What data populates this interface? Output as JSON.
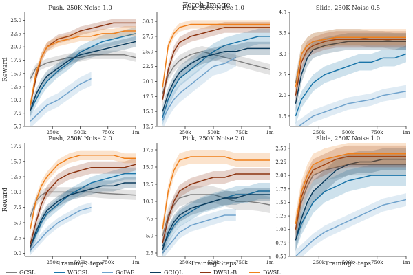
{
  "chart_data": {
    "type": "line",
    "title": "Fetch Image",
    "ylabel": "Reward",
    "xlabel": "Training Steps",
    "series_names": [
      "GCSL",
      "WGCSL",
      "GoFAR",
      "GCIQL",
      "DWSL-B",
      "DWSL"
    ],
    "series_colors": [
      "#7f7f7f",
      "#1a75a9",
      "#6fa2cc",
      "#0b3b5c",
      "#8b3310",
      "#ef7f1a"
    ],
    "x": [
      50000,
      100000,
      150000,
      200000,
      300000,
      400000,
      500000,
      600000,
      700000,
      800000,
      900000,
      1000000
    ],
    "panels": [
      {
        "title": "Push, 250K Noise 1.0",
        "xlim": [
          0,
          1000000
        ],
        "xticks": [
          250000,
          500000,
          750000,
          1000000
        ],
        "xtick_labels": [
          "250k",
          "500k",
          "750k",
          "1m"
        ],
        "ylim": [
          5,
          26.5
        ],
        "yticks": [
          5.0,
          7.5,
          10.0,
          12.5,
          15.0,
          17.5,
          20.0,
          22.5,
          25.0
        ],
        "ytick_labels": [
          "5.0",
          "7.5",
          "10.0",
          "12.5",
          "15.0",
          "17.5",
          "20.0",
          "22.5",
          "25.0"
        ],
        "series": [
          {
            "name": "GCSL",
            "values": [
              14,
              16,
              16.5,
              17,
              17.5,
              18,
              18,
              18.5,
              18.5,
              18.5,
              18.5,
              18
            ],
            "band": 0.8
          },
          {
            "name": "WGCSL",
            "values": [
              8,
              10,
              12,
              13.5,
              15.5,
              17,
              19,
              20,
              21,
              21.5,
              22,
              22.5
            ],
            "band": 1.2
          },
          {
            "name": "GoFAR",
            "values": [
              6,
              7,
              8,
              9,
              10,
              11.5,
              13,
              14,
              null,
              null,
              null,
              null
            ],
            "band": 1.3
          },
          {
            "name": "GCIQL",
            "values": [
              8,
              11,
              13,
              14.5,
              16,
              17.5,
              18.5,
              19,
              19.5,
              20,
              20.5,
              21
            ],
            "band": 1.0
          },
          {
            "name": "DWSL-B",
            "values": [
              9,
              14,
              18,
              20,
              21.5,
              22,
              23,
              23.5,
              24,
              24.5,
              24.5,
              24.5
            ],
            "band": 0.8
          },
          {
            "name": "DWSL",
            "values": [
              9,
              15,
              18,
              20,
              21,
              21.5,
              22,
              22,
              22.5,
              22.5,
              23,
              23
            ],
            "band": 0.9
          }
        ]
      },
      {
        "title": "Pick, 250K Noise 1.0",
        "xlim": [
          0,
          1000000
        ],
        "xticks": [
          250000,
          500000,
          750000,
          1000000
        ],
        "xtick_labels": [
          "250k",
          "500k",
          "750k",
          "1m"
        ],
        "ylim": [
          12.5,
          31.5
        ],
        "yticks": [
          12.5,
          15.0,
          17.5,
          20.0,
          22.5,
          25.0,
          27.5,
          30.0
        ],
        "ytick_labels": [
          "12.5",
          "15.0",
          "17.5",
          "20.0",
          "22.5",
          "25.0",
          "27.5",
          "30.0"
        ],
        "series": [
          {
            "name": "GCSL",
            "values": [
              18,
              21,
              22.5,
              23.5,
              24.5,
              25,
              24.5,
              24,
              23.5,
              23,
              22.5,
              22
            ],
            "band": 0.9
          },
          {
            "name": "WGCSL",
            "values": [
              14,
              17,
              19,
              20.5,
              22,
              23.5,
              25,
              26,
              26.5,
              27,
              27.5,
              27.5
            ],
            "band": 1.3
          },
          {
            "name": "GoFAR",
            "values": [
              13.5,
              15.5,
              17,
              18,
              19.5,
              21,
              22.5,
              23,
              24,
              null,
              null,
              null
            ],
            "band": 1.5
          },
          {
            "name": "GCIQL",
            "values": [
              15,
              18,
              20,
              21.5,
              23,
              24,
              24.5,
              25,
              25,
              25.5,
              25.5,
              25.5
            ],
            "band": 1.1
          },
          {
            "name": "DWSL-B",
            "values": [
              17,
              22,
              25,
              26.5,
              27.5,
              28,
              28.5,
              29,
              29,
              29,
              29,
              29
            ],
            "band": 0.9
          },
          {
            "name": "DWSL",
            "values": [
              19,
              26,
              28,
              29,
              29.5,
              29.5,
              29.5,
              29.5,
              29.5,
              29.5,
              29.5,
              29.5
            ],
            "band": 0.7
          }
        ]
      },
      {
        "title": "Slide, 250K Noise 0.5",
        "xlim": [
          0,
          1000000
        ],
        "xticks": [
          250000,
          500000,
          750000,
          1000000
        ],
        "xtick_labels": [
          "250k",
          "500k",
          "750k",
          "1m"
        ],
        "ylim": [
          1.25,
          4.0
        ],
        "yticks": [
          1.5,
          2.0,
          2.5,
          3.0,
          3.5,
          4.0
        ],
        "ytick_labels": [
          "1.5",
          "2.0",
          "2.5",
          "3.0",
          "3.5",
          "4.0"
        ],
        "series": [
          {
            "name": "GCSL",
            "values": [
              2.3,
              3.0,
              3.2,
              3.3,
              3.35,
              3.4,
              3.4,
              3.4,
              3.35,
              3.35,
              3.3,
              3.3
            ],
            "band": 0.2
          },
          {
            "name": "WGCSL",
            "values": [
              1.5,
              1.9,
              2.1,
              2.3,
              2.5,
              2.6,
              2.7,
              2.8,
              2.8,
              2.9,
              2.9,
              3.0
            ],
            "band": 0.2
          },
          {
            "name": "GoFAR",
            "values": [
              1.2,
              1.3,
              1.4,
              1.5,
              1.6,
              1.7,
              1.8,
              1.85,
              1.9,
              2.0,
              2.05,
              2.1
            ],
            "band": 0.15
          },
          {
            "name": "GCIQL",
            "values": [
              1.8,
              2.5,
              2.9,
              3.1,
              3.2,
              3.25,
              3.3,
              3.3,
              3.3,
              3.3,
              3.3,
              3.3
            ],
            "band": 0.2
          },
          {
            "name": "DWSL-B",
            "values": [
              2.0,
              2.8,
              3.1,
              3.2,
              3.3,
              3.35,
              3.35,
              3.35,
              3.35,
              3.35,
              3.35,
              3.35
            ],
            "band": 0.2
          },
          {
            "name": "DWSL",
            "values": [
              2.2,
              3.0,
              3.2,
              3.3,
              3.35,
              3.4,
              3.4,
              3.4,
              3.4,
              3.4,
              3.4,
              3.4
            ],
            "band": 0.2
          }
        ]
      },
      {
        "title": "Push, 250K Noise 2.0",
        "xlim": [
          0,
          1000000
        ],
        "xticks": [
          250000,
          500000,
          750000,
          1000000
        ],
        "xtick_labels": [
          "250k",
          "500k",
          "750k",
          "1m"
        ],
        "ylim": [
          -0.5,
          18.0
        ],
        "yticks": [
          0.0,
          2.5,
          5.0,
          7.5,
          10.0,
          12.5,
          15.0,
          17.5
        ],
        "ytick_labels": [
          "0.0",
          "2.5",
          "5.0",
          "7.5",
          "10.0",
          "12.5",
          "15.0",
          "17.5"
        ],
        "series": [
          {
            "name": "GCSL",
            "values": [
              6,
              8.5,
              9.5,
              10,
              10,
              10,
              10,
              10,
              9.8,
              9.7,
              9.6,
              9.5
            ],
            "band": 0.8
          },
          {
            "name": "WGCSL",
            "values": [
              1,
              3,
              5,
              6.5,
              8,
              9.5,
              10.5,
              11.5,
              12,
              12.5,
              13,
              13
            ],
            "band": 1.0
          },
          {
            "name": "GoFAR",
            "values": [
              0.5,
              1.5,
              2.5,
              3.5,
              5,
              6,
              7,
              7.5,
              null,
              null,
              null,
              null
            ],
            "band": 0.8
          },
          {
            "name": "GCIQL",
            "values": [
              1,
              3.5,
              5.5,
              7,
              8.5,
              9.5,
              10,
              10.5,
              11,
              11,
              11.5,
              11.5
            ],
            "band": 0.9
          },
          {
            "name": "DWSL-B",
            "values": [
              1.5,
              5,
              8,
              10,
              12,
              13,
              13.5,
              14,
              14,
              14,
              14,
              14.5
            ],
            "band": 1.0
          },
          {
            "name": "DWSL",
            "values": [
              4,
              8.5,
              11,
              12.5,
              14.5,
              15.5,
              16,
              16,
              16,
              16,
              15.5,
              15.5
            ],
            "band": 0.8
          }
        ]
      },
      {
        "title": "Pick, 250K Noise 2.0",
        "xlim": [
          0,
          1000000
        ],
        "xticks": [
          250000,
          500000,
          750000,
          1000000
        ],
        "xtick_labels": [
          "250k",
          "500k",
          "750k",
          "1m"
        ],
        "ylim": [
          2.0,
          18.5
        ],
        "yticks": [
          2.5,
          5.0,
          7.5,
          10.0,
          12.5,
          15.0,
          17.5
        ],
        "ytick_labels": [
          "2.5",
          "5.0",
          "7.5",
          "10.0",
          "12.5",
          "15.0",
          "17.5"
        ],
        "series": [
          {
            "name": "GCSL",
            "values": [
              5,
              8,
              9.5,
              10.5,
              11,
              11,
              11,
              10.5,
              10,
              10,
              9.8,
              9.5
            ],
            "band": 1.2
          },
          {
            "name": "WGCSL",
            "values": [
              3.5,
              5,
              6.5,
              7.5,
              8.5,
              9.5,
              10,
              10.5,
              11,
              11,
              11.5,
              11.5
            ],
            "band": 1.2
          },
          {
            "name": "GoFAR",
            "values": [
              2.5,
              3.5,
              4.5,
              5.5,
              6.5,
              7,
              7.5,
              8,
              8,
              null,
              null,
              null
            ],
            "band": 0.9
          },
          {
            "name": "GCIQL",
            "values": [
              3,
              5.5,
              7,
              8,
              9,
              9.5,
              10,
              10.5,
              10.5,
              11,
              11,
              11
            ],
            "band": 1.0
          },
          {
            "name": "DWSL-B",
            "values": [
              4,
              7.5,
              10,
              11.5,
              12.5,
              13,
              13.5,
              13.5,
              14,
              14,
              14,
              14
            ],
            "band": 0.9
          },
          {
            "name": "DWSL",
            "values": [
              6,
              11.5,
              14.5,
              16,
              16.5,
              16.5,
              16.5,
              16.5,
              16,
              16,
              16,
              16
            ],
            "band": 1.0
          }
        ]
      },
      {
        "title": "Slide, 250K Noise 1.0",
        "xlim": [
          0,
          1000000
        ],
        "xticks": [
          250000,
          500000,
          750000,
          1000000
        ],
        "xtick_labels": [
          "250k",
          "500k",
          "750k",
          "1m"
        ],
        "ylim": [
          0.5,
          2.6
        ],
        "yticks": [
          0.5,
          0.75,
          1.0,
          1.25,
          1.5,
          1.75,
          2.0,
          2.25,
          2.5
        ],
        "ytick_labels": [
          "0.50",
          "0.75",
          "1.00",
          "1.25",
          "1.50",
          "1.75",
          "2.00",
          "2.25",
          "2.50"
        ],
        "series": [
          {
            "name": "GCSL",
            "values": [
              1.0,
              1.5,
              1.8,
              2.0,
              2.1,
              2.15,
              2.2,
              2.2,
              2.2,
              2.2,
              2.2,
              2.2
            ],
            "band": 0.2
          },
          {
            "name": "WGCSL",
            "values": [
              0.8,
              1.1,
              1.3,
              1.5,
              1.7,
              1.8,
              1.9,
              1.95,
              2.0,
              2.0,
              2.0,
              2.0
            ],
            "band": 0.2
          },
          {
            "name": "GoFAR",
            "values": [
              0.5,
              0.6,
              0.7,
              0.8,
              0.95,
              1.05,
              1.15,
              1.25,
              1.35,
              1.45,
              1.5,
              1.55
            ],
            "band": 0.12
          },
          {
            "name": "GCIQL",
            "values": [
              0.8,
              1.2,
              1.5,
              1.7,
              1.9,
              2.1,
              2.2,
              2.25,
              2.25,
              2.3,
              2.3,
              2.3
            ],
            "band": 0.2
          },
          {
            "name": "DWSL-B",
            "values": [
              1.0,
              1.6,
              1.9,
              2.1,
              2.2,
              2.3,
              2.35,
              2.35,
              2.35,
              2.35,
              2.35,
              2.35
            ],
            "band": 0.2
          },
          {
            "name": "DWSL",
            "values": [
              1.1,
              1.7,
              2.0,
              2.2,
              2.3,
              2.35,
              2.4,
              2.4,
              2.4,
              2.4,
              2.4,
              2.4
            ],
            "band": 0.2
          }
        ]
      }
    ]
  }
}
